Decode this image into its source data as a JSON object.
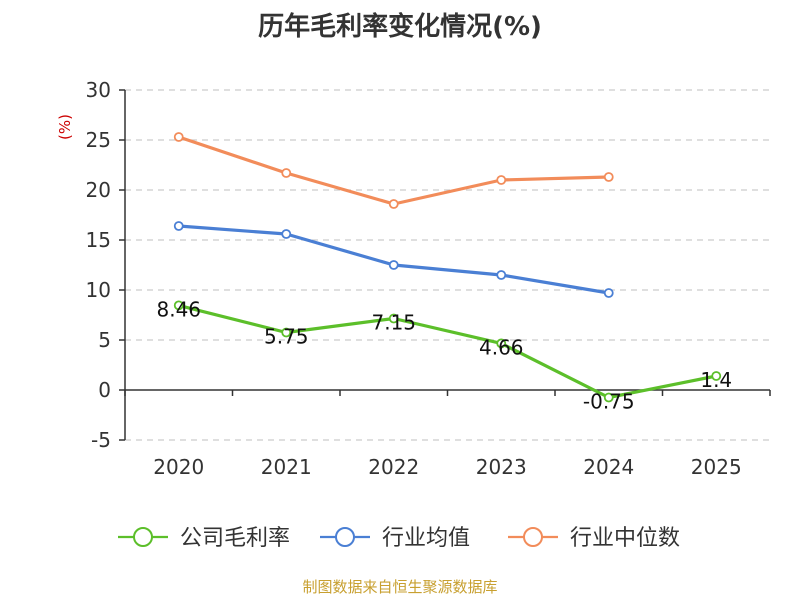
{
  "chart_data": {
    "type": "line",
    "title": "历年毛利率变化情况(%)",
    "ylabel": "(%)",
    "xlabel": "",
    "categories": [
      "2020",
      "2021",
      "2022",
      "2023",
      "2024",
      "2025"
    ],
    "ylim": [
      -5,
      30
    ],
    "yticks": [
      -5,
      0,
      5,
      10,
      15,
      20,
      25,
      30
    ],
    "grid": true,
    "legend_position": "bottom",
    "series": [
      {
        "name": "公司毛利率",
        "color": "#5cbf2a",
        "values": [
          8.46,
          5.75,
          7.15,
          4.66,
          -0.75,
          1.4
        ],
        "labels": [
          "8.46",
          "5.75",
          "7.15",
          "4.66",
          "-0.75",
          "1.4"
        ]
      },
      {
        "name": "行业均值",
        "color": "#4a7fd4",
        "values": [
          16.4,
          15.6,
          12.5,
          11.5,
          9.7,
          null
        ]
      },
      {
        "name": "行业中位数",
        "color": "#f28c5a",
        "values": [
          25.3,
          21.7,
          18.6,
          21.0,
          21.3,
          null
        ]
      }
    ]
  },
  "footer": {
    "source": "制图数据来自恒生聚源数据库"
  },
  "colors": {
    "title": "#333333",
    "axis": "#333333",
    "grid": "#cccccc",
    "ylabel": "#cc0000",
    "source": "#c8a030"
  }
}
